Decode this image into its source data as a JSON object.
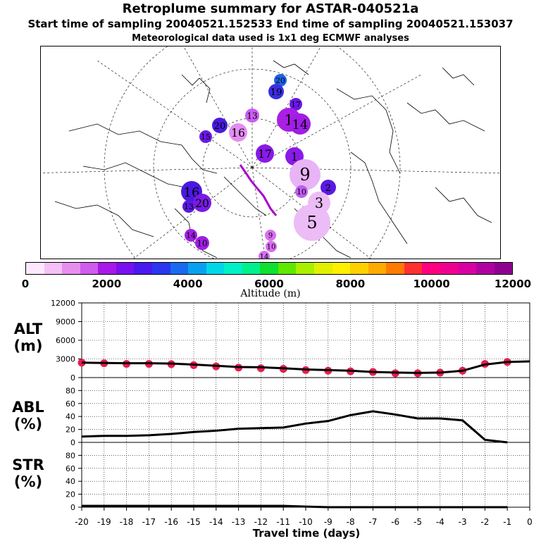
{
  "header": {
    "title": "Retroplume summary for ASTAR-040521a",
    "sampling": "Start time of sampling 20040521.152533     End time of sampling 20040521.153037",
    "met": "Meteorological data used is 1x1 deg ECMWF analyses"
  },
  "map": {
    "description_free": true,
    "plume_track_color": "#aa00cc",
    "markers": [
      {
        "label": "20",
        "color": "#1e64e6",
        "r": 9
      },
      {
        "label": "19",
        "color": "#3a2ee0",
        "r": 11
      },
      {
        "label": "17",
        "color": "#6a18e6",
        "r": 9
      },
      {
        "label": "13",
        "color": "#c95ef0",
        "r": 10
      },
      {
        "label": "1",
        "color": "#aa1ee6",
        "r": 17
      },
      {
        "label": "14",
        "color": "#a01ee6",
        "r": 15
      },
      {
        "label": "20",
        "color": "#4a1ae0",
        "r": 11
      },
      {
        "label": "16",
        "color": "#e48cf2",
        "r": 13
      },
      {
        "label": "15",
        "color": "#6a18e6",
        "r": 9
      },
      {
        "label": "17",
        "color": "#8a1ae8",
        "r": 13
      },
      {
        "label": "1",
        "color": "#8a1ae8",
        "r": 13
      },
      {
        "label": "9",
        "color": "#e9b4f6",
        "r": 22
      },
      {
        "label": "2",
        "color": "#5a1ae0",
        "r": 11
      },
      {
        "label": "16",
        "color": "#4a1ae0",
        "r": 15
      },
      {
        "label": "13",
        "color": "#5a1ae0",
        "r": 9
      },
      {
        "label": "20",
        "color": "#7a1ae6",
        "r": 13
      },
      {
        "label": "10",
        "color": "#bf5cf0",
        "r": 9
      },
      {
        "label": "5",
        "color": "#ecbcf6",
        "r": 26
      },
      {
        "label": "3",
        "color": "#ecbcf6",
        "r": 16
      },
      {
        "label": "14",
        "color": "#a01ee6",
        "r": 9
      },
      {
        "label": "10",
        "color": "#a01ee6",
        "r": 10
      },
      {
        "label": "9",
        "color": "#d86ef2",
        "r": 8
      },
      {
        "label": "10",
        "color": "#d86ef2",
        "r": 8
      },
      {
        "label": "14",
        "color": "#d86ef2",
        "r": 8
      }
    ]
  },
  "colorbar": {
    "title": "Altitude (m)",
    "ticks": [
      "0",
      "2000",
      "4000",
      "6000",
      "8000",
      "10000",
      "12000"
    ],
    "colors": [
      "#fde8fd",
      "#f5c0f5",
      "#e88eef",
      "#cf5cec",
      "#a818e8",
      "#7a10f0",
      "#4a18f0",
      "#2a36f0",
      "#1a6af0",
      "#0aa0f0",
      "#00d8e8",
      "#00f0c8",
      "#00f08c",
      "#10e030",
      "#60e800",
      "#a8f000",
      "#e0f000",
      "#fff000",
      "#ffd000",
      "#ffaa00",
      "#ff7a00",
      "#ff3030",
      "#ff0080",
      "#f00090",
      "#d800a0",
      "#b000a0",
      "#900090"
    ]
  },
  "chart_data": {
    "type": "line",
    "xlabel": "Travel time (days)",
    "x_ticks": [
      "-20",
      "-19",
      "-18",
      "-17",
      "-16",
      "-15",
      "-14",
      "-13",
      "-12",
      "-11",
      "-10",
      "-9",
      "-8",
      "-7",
      "-6",
      "-5",
      "-4",
      "-3",
      "-2",
      "-1",
      "0"
    ],
    "xlim": [
      -20,
      0
    ],
    "panels": [
      {
        "name": "ALT",
        "unit": "(m)",
        "ylim": [
          0,
          12000
        ],
        "yticks": [
          "0",
          "3000",
          "6000",
          "9000",
          "12000"
        ],
        "x": [
          -20,
          -19,
          -18,
          -17,
          -16,
          -15,
          -14,
          -13,
          -12,
          -11,
          -10,
          -9,
          -8,
          -7,
          -6,
          -5,
          -4,
          -3,
          -2,
          -1,
          0
        ],
        "values": [
          2400,
          2350,
          2300,
          2300,
          2250,
          2100,
          1900,
          1700,
          1650,
          1500,
          1300,
          1200,
          1100,
          900,
          800,
          750,
          800,
          1100,
          2100,
          2500,
          2600
        ],
        "dots": {
          "color": "#e61e50",
          "x": [
            -20,
            -19,
            -18,
            -17,
            -16,
            -15,
            -14,
            -13,
            -12,
            -11,
            -10,
            -9,
            -8,
            -7,
            -6,
            -5,
            -4,
            -3,
            -2,
            -1
          ],
          "values": [
            2400,
            2300,
            2200,
            2200,
            2150,
            2000,
            1800,
            1600,
            1500,
            1400,
            1200,
            1100,
            1000,
            900,
            700,
            700,
            800,
            1100,
            2200,
            2500
          ]
        }
      },
      {
        "name": "ABL",
        "unit": "(%)",
        "ylim": [
          0,
          100
        ],
        "yticks": [
          "0",
          "20",
          "40",
          "60",
          "80"
        ],
        "x": [
          -20,
          -19,
          -18,
          -17,
          -16,
          -15,
          -14,
          -13,
          -12,
          -11,
          -10,
          -9,
          -8,
          -7,
          -6,
          -5,
          -4,
          -3,
          -2,
          -1
        ],
        "values": [
          9,
          10,
          10,
          11,
          13,
          16,
          18,
          21,
          22,
          23,
          29,
          33,
          42,
          48,
          43,
          37,
          37,
          34,
          4,
          0
        ]
      },
      {
        "name": "STR",
        "unit": "(%)",
        "ylim": [
          0,
          100
        ],
        "yticks": [
          "0",
          "20",
          "40",
          "60",
          "80"
        ],
        "x": [
          -20,
          -19,
          -18,
          -17,
          -16,
          -15,
          -14,
          -13,
          -12,
          -11,
          -10,
          -9,
          -8,
          -7,
          -6,
          -5,
          -4,
          -3,
          -2,
          -1
        ],
        "values": [
          2,
          2,
          2,
          2,
          2,
          2,
          2,
          2,
          2,
          2,
          1,
          0,
          0,
          0,
          0,
          0,
          0,
          0,
          0,
          0
        ]
      }
    ]
  }
}
